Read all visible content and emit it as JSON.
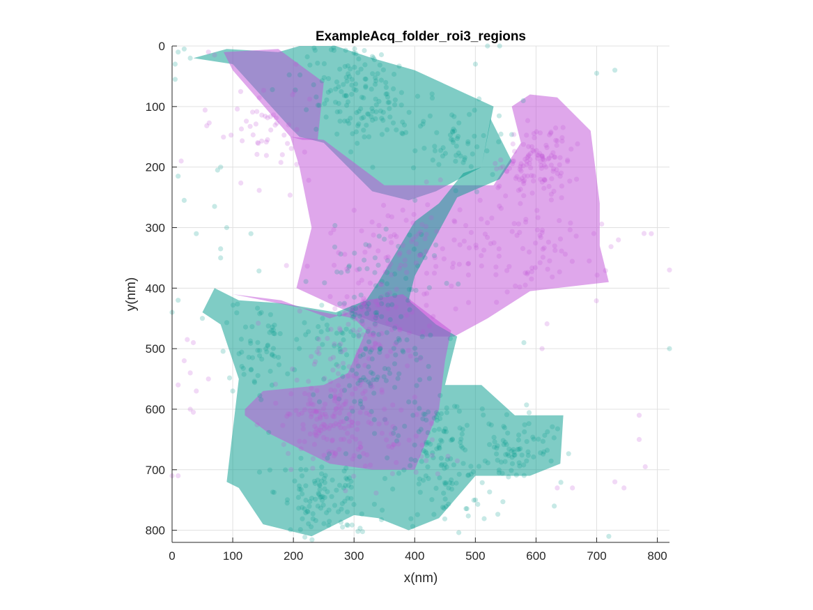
{
  "chart_data": {
    "type": "scatter",
    "title": "ExampleAcq_folder_roi3_regions",
    "xlabel": "x(nm)",
    "ylabel": "y(nm)",
    "xlim": [
      0,
      820
    ],
    "ylim": [
      0,
      820
    ],
    "y_reversed": true,
    "grid": true,
    "legend": "none",
    "xticks": [
      0,
      100,
      200,
      300,
      400,
      500,
      600,
      700,
      800
    ],
    "yticks": [
      0,
      100,
      200,
      300,
      400,
      500,
      600,
      700,
      800
    ],
    "xtick_labels": [
      "0",
      "100",
      "200",
      "300",
      "400",
      "500",
      "600",
      "700",
      "800"
    ],
    "ytick_labels": [
      "0",
      "100",
      "200",
      "300",
      "400",
      "500",
      "600",
      "700",
      "800"
    ],
    "colors": {
      "teal": "#009a8c",
      "magenta": "#c050d8",
      "grid": "#e0e0e0",
      "axis": "#262626"
    },
    "regions": [
      {
        "color": "teal",
        "points": [
          [
            35,
            20
          ],
          [
            90,
            5
          ],
          [
            175,
            10
          ],
          [
            210,
            0
          ],
          [
            270,
            0
          ],
          [
            330,
            20
          ],
          [
            400,
            40
          ],
          [
            530,
            100
          ],
          [
            510,
            200
          ],
          [
            435,
            240
          ],
          [
            390,
            255
          ],
          [
            330,
            240
          ],
          [
            250,
            160
          ],
          [
            210,
            150
          ],
          [
            195,
            135
          ],
          [
            100,
            30
          ]
        ]
      },
      {
        "color": "magenta",
        "points": [
          [
            85,
            10
          ],
          [
            175,
            5
          ],
          [
            250,
            60
          ],
          [
            240,
            155
          ],
          [
            215,
            155
          ],
          [
            195,
            150
          ],
          [
            100,
            40
          ]
        ]
      },
      {
        "color": "magenta",
        "points": [
          [
            195,
            150
          ],
          [
            250,
            155
          ],
          [
            350,
            230
          ],
          [
            400,
            230
          ],
          [
            530,
            230
          ],
          [
            575,
            160
          ],
          [
            560,
            100
          ],
          [
            590,
            80
          ],
          [
            635,
            85
          ],
          [
            690,
            140
          ],
          [
            705,
            260
          ],
          [
            705,
            330
          ],
          [
            720,
            390
          ],
          [
            590,
            405
          ],
          [
            520,
            450
          ],
          [
            465,
            480
          ],
          [
            410,
            480
          ],
          [
            330,
            455
          ],
          [
            270,
            430
          ],
          [
            205,
            400
          ],
          [
            230,
            300
          ],
          [
            210,
            200
          ]
        ]
      },
      {
        "color": "teal",
        "points": [
          [
            70,
            400
          ],
          [
            110,
            420
          ],
          [
            180,
            425
          ],
          [
            270,
            440
          ],
          [
            320,
            420
          ],
          [
            340,
            390
          ],
          [
            400,
            290
          ],
          [
            440,
            260
          ],
          [
            480,
            210
          ],
          [
            510,
            200
          ],
          [
            525,
            120
          ],
          [
            560,
            190
          ],
          [
            540,
            220
          ],
          [
            470,
            250
          ],
          [
            400,
            380
          ],
          [
            390,
            420
          ],
          [
            435,
            460
          ],
          [
            470,
            480
          ],
          [
            450,
            560
          ],
          [
            510,
            560
          ],
          [
            565,
            610
          ],
          [
            645,
            610
          ],
          [
            640,
            690
          ],
          [
            590,
            710
          ],
          [
            500,
            710
          ],
          [
            440,
            780
          ],
          [
            390,
            800
          ],
          [
            340,
            780
          ],
          [
            300,
            775
          ],
          [
            230,
            810
          ],
          [
            150,
            790
          ],
          [
            110,
            730
          ],
          [
            90,
            720
          ],
          [
            110,
            550
          ],
          [
            80,
            460
          ],
          [
            50,
            440
          ]
        ]
      },
      {
        "color": "magenta",
        "points": [
          [
            100,
            410
          ],
          [
            180,
            420
          ],
          [
            260,
            450
          ],
          [
            290,
            440
          ],
          [
            320,
            420
          ],
          [
            380,
            410
          ],
          [
            460,
            470
          ],
          [
            450,
            520
          ],
          [
            440,
            600
          ],
          [
            420,
            650
          ],
          [
            400,
            700
          ],
          [
            330,
            700
          ],
          [
            260,
            690
          ],
          [
            200,
            660
          ],
          [
            160,
            640
          ],
          [
            120,
            610
          ],
          [
            120,
            600
          ],
          [
            150,
            570
          ],
          [
            250,
            560
          ],
          [
            290,
            540
          ],
          [
            320,
            470
          ],
          [
            300,
            450
          ]
        ]
      }
    ],
    "series": [
      {
        "color": "teal",
        "clusters": [
          {
            "cx": 320,
            "cy": 100,
            "sx": 40,
            "sy": 30,
            "n": 90
          },
          {
            "cx": 280,
            "cy": 40,
            "sx": 50,
            "sy": 30,
            "n": 60
          },
          {
            "cx": 470,
            "cy": 160,
            "sx": 40,
            "sy": 35,
            "n": 60
          },
          {
            "cx": 320,
            "cy": 500,
            "sx": 50,
            "sy": 60,
            "n": 140
          },
          {
            "cx": 250,
            "cy": 740,
            "sx": 40,
            "sy": 40,
            "n": 110
          },
          {
            "cx": 440,
            "cy": 650,
            "sx": 30,
            "sy": 30,
            "n": 80
          },
          {
            "cx": 560,
            "cy": 660,
            "sx": 40,
            "sy": 30,
            "n": 80
          },
          {
            "cx": 150,
            "cy": 500,
            "sx": 35,
            "sy": 45,
            "n": 60
          },
          {
            "cx": 450,
            "cy": 750,
            "sx": 40,
            "sy": 30,
            "n": 50
          },
          {
            "cx": 330,
            "cy": 370,
            "sx": 60,
            "sy": 60,
            "n": 50
          }
        ],
        "points": [
          [
            10,
            10
          ],
          [
            20,
            5
          ],
          [
            5,
            30
          ],
          [
            30,
            20
          ],
          [
            5,
            55
          ],
          [
            40,
            310
          ],
          [
            70,
            265
          ],
          [
            80,
            200
          ],
          [
            75,
            205
          ],
          [
            90,
            300
          ],
          [
            80,
            335
          ],
          [
            80,
            350
          ],
          [
            20,
            255
          ],
          [
            10,
            215
          ],
          [
            0,
            440
          ],
          [
            50,
            450
          ],
          [
            10,
            420
          ],
          [
            100,
            570
          ],
          [
            130,
            310
          ],
          [
            520,
            0
          ],
          [
            540,
            0
          ],
          [
            500,
            30
          ],
          [
            700,
            45
          ],
          [
            730,
            40
          ],
          [
            820,
            500
          ],
          [
            720,
            810
          ],
          [
            630,
            760
          ],
          [
            580,
            490
          ]
        ]
      },
      {
        "color": "magenta",
        "clusters": [
          {
            "cx": 600,
            "cy": 190,
            "sx": 30,
            "sy": 30,
            "n": 120
          },
          {
            "cx": 260,
            "cy": 610,
            "sx": 40,
            "sy": 40,
            "n": 150
          },
          {
            "cx": 330,
            "cy": 450,
            "sx": 50,
            "sy": 50,
            "n": 120
          },
          {
            "cx": 420,
            "cy": 320,
            "sx": 60,
            "sy": 40,
            "n": 80
          },
          {
            "cx": 160,
            "cy": 130,
            "sx": 40,
            "sy": 40,
            "n": 50
          },
          {
            "cx": 600,
            "cy": 330,
            "sx": 60,
            "sy": 50,
            "n": 70
          },
          {
            "cx": 360,
            "cy": 660,
            "sx": 50,
            "sy": 30,
            "n": 40
          }
        ],
        "points": [
          [
            20,
            520
          ],
          [
            30,
            540
          ],
          [
            10,
            560
          ],
          [
            40,
            570
          ],
          [
            35,
            490
          ],
          [
            25,
            485
          ],
          [
            60,
            550
          ],
          [
            30,
            600
          ],
          [
            35,
            605
          ],
          [
            0,
            710
          ],
          [
            10,
            710
          ],
          [
            15,
            190
          ],
          [
            60,
            10
          ],
          [
            70,
            15
          ],
          [
            790,
            310
          ],
          [
            820,
            370
          ],
          [
            770,
            610
          ],
          [
            770,
            650
          ],
          [
            780,
            695
          ],
          [
            745,
            730
          ],
          [
            730,
            720
          ],
          [
            660,
            730
          ],
          [
            635,
            730
          ],
          [
            610,
            500
          ],
          [
            400,
            580
          ],
          [
            350,
            600
          ]
        ]
      }
    ]
  }
}
